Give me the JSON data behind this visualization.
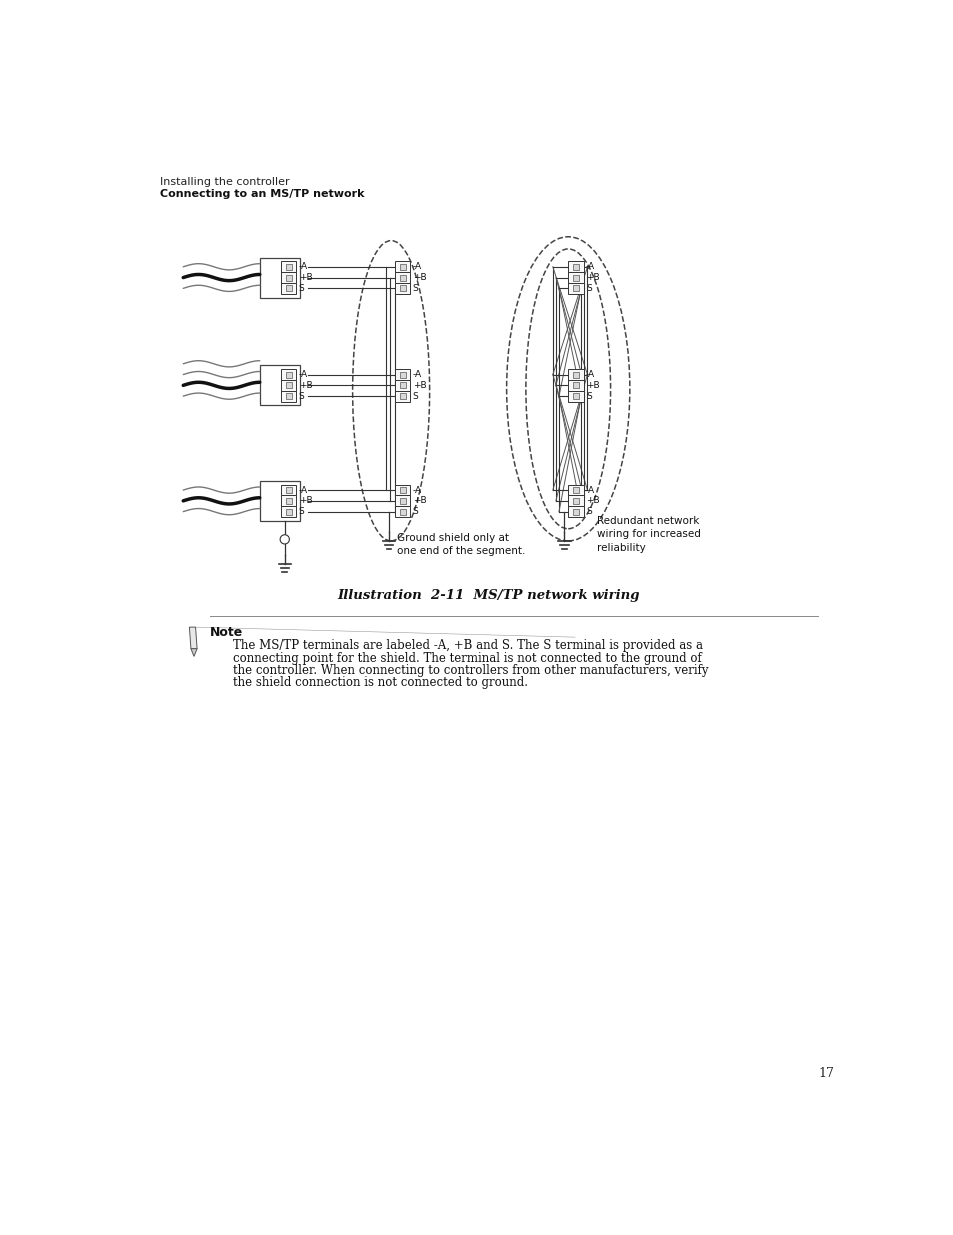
{
  "bg_color": "#ffffff",
  "page_number": "17",
  "header_line1": "Installing the controller",
  "header_line2": "Connecting to an MS/TP network",
  "caption": "Illustration  2-11  MS/TP network wiring",
  "note_title": "Note",
  "note_text_line1": "The MS/TP terminals are labeled -​A, +​B and S. The S terminal is provided as a",
  "note_text_line2": "connecting point for the shield. The terminal is not connected to the ground of",
  "note_text_line3": "the controller. When connecting to controllers from other manufacturers, verify",
  "note_text_line4": "the shield connection is not connected to ground.",
  "ground_text1_line1": "Ground shield only at",
  "ground_text1_line2": "one end of the segment.",
  "ground_text2_line1": "Redundant network",
  "ground_text2_line2": "wiring for increased",
  "ground_text2_line3": "reliability"
}
